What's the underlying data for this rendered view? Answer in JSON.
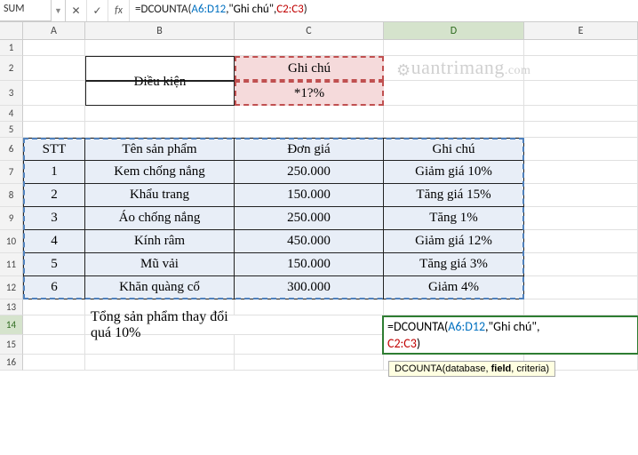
{
  "formula_bar": {
    "name_box": "SUM",
    "cancel": "✕",
    "enter": "✓",
    "fx": "fx",
    "formula_prefix": "=DCOUNTA(",
    "ref1": "A6:D12",
    "sep1": ",\"Ghi chú\",",
    "ref2": "C2:C3",
    "suffix": ")"
  },
  "columns": [
    "A",
    "B",
    "C",
    "D",
    "E"
  ],
  "col_widths": {
    "A": 70,
    "B": 168,
    "C": 168,
    "D": 158,
    "E": 128
  },
  "row_heights": {
    "1": 18,
    "2": 28,
    "3": 28,
    "4": 18,
    "5": 18,
    "6": 26,
    "7": 26,
    "8": 26,
    "9": 26,
    "10": 26,
    "11": 26,
    "12": 26,
    "13": 18,
    "14": 22,
    "15": 22,
    "16": 18
  },
  "condition": {
    "label": "Điều kiện",
    "header": "Ghi chú",
    "pattern": "*1?%"
  },
  "data_table": {
    "headers": {
      "stt": "STT",
      "name": "Tên sản phẩm",
      "price": "Đơn giá",
      "note": "Ghi chú"
    },
    "rows": [
      {
        "stt": "1",
        "name": "Kem chống nắng",
        "price": "250.000",
        "note": "Giảm giá 10%"
      },
      {
        "stt": "2",
        "name": "Khẩu trang",
        "price": "150.000",
        "note": "Tăng giá 15%"
      },
      {
        "stt": "3",
        "name": "Áo chống nắng",
        "price": "250.000",
        "note": "Tăng 1%"
      },
      {
        "stt": "4",
        "name": "Kính râm",
        "price": "450.000",
        "note": "Giảm giá 12%"
      },
      {
        "stt": "5",
        "name": "Mũ vải",
        "price": "150.000",
        "note": "Tăng giá 3%"
      },
      {
        "stt": "6",
        "name": "Khăn quàng cổ",
        "price": "300.000",
        "note": "Giảm 4%"
      }
    ]
  },
  "summary": {
    "label": "Tổng sản phẩm thay đổi quá 10%",
    "formula_prefix": "=DCOUNTA(",
    "ref1": "A6:D12",
    "sep1": ",\"Ghi chú\",",
    "ref2": "C2:C3",
    "suffix": ")"
  },
  "tooltip": {
    "fn": "DCOUNTA(",
    "arg1": "database",
    "arg2": "field",
    "arg3": "criteria",
    "close": ")"
  },
  "watermark": "uantrimang",
  "colors": {
    "header_bg": "#f3f3f3",
    "grid_line": "#e0e0e0",
    "data_bg": "#e8eef7",
    "cond_bg": "#f5dadb",
    "ants_blue": "#4f81bd",
    "ants_red": "#c05050",
    "active_green": "#2e7d32",
    "ref_blue": "#0070c0",
    "ref_red": "#c00000"
  }
}
